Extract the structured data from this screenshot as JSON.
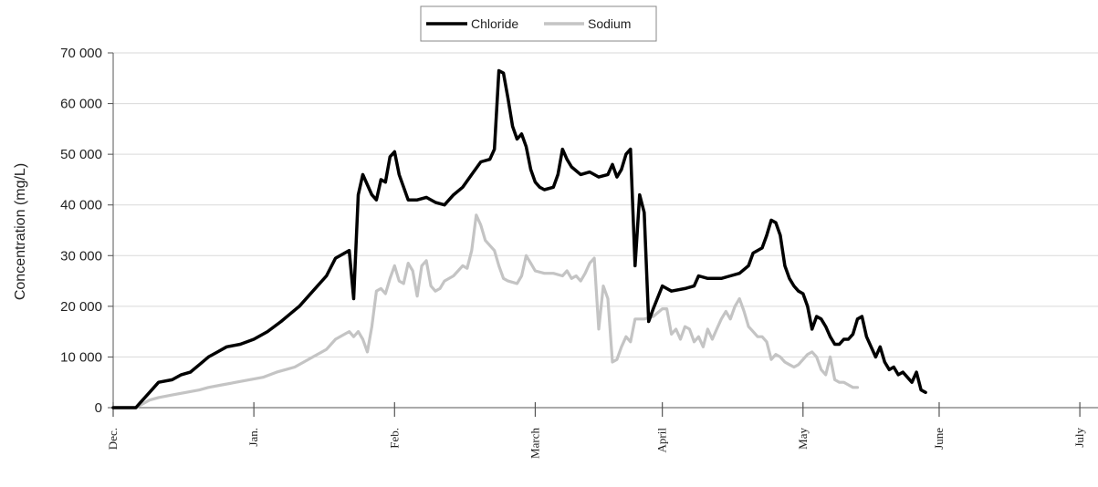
{
  "chart_data": {
    "type": "line",
    "ylabel": "Concentration (mg/L)",
    "ylim": [
      0,
      70000
    ],
    "y_ticks": [
      0,
      10000,
      20000,
      30000,
      40000,
      50000,
      60000,
      70000
    ],
    "y_tick_labels": [
      "0",
      "10 000",
      "20 000",
      "30 000",
      "40 000",
      "50 000",
      "60 000",
      "70 000"
    ],
    "x_months": [
      "Dec.",
      "Jan.",
      "Feb.",
      "March",
      "April",
      "May",
      "June",
      "July"
    ],
    "x_month_start_day": [
      0,
      31,
      62,
      93,
      121,
      152,
      182,
      213
    ],
    "x_end_day": 217,
    "grid_y": true,
    "legend_position": "top-center",
    "series": [
      {
        "name": "Chloride",
        "color": "#000000",
        "points": [
          [
            0,
            0
          ],
          [
            5,
            0
          ],
          [
            6,
            1000
          ],
          [
            8,
            3000
          ],
          [
            10,
            5000
          ],
          [
            13,
            5500
          ],
          [
            15,
            6500
          ],
          [
            17,
            7000
          ],
          [
            19,
            8500
          ],
          [
            21,
            10000
          ],
          [
            23,
            11000
          ],
          [
            25,
            12000
          ],
          [
            28,
            12500
          ],
          [
            31,
            13500
          ],
          [
            34,
            15000
          ],
          [
            37,
            17000
          ],
          [
            39,
            18500
          ],
          [
            41,
            20000
          ],
          [
            44,
            23000
          ],
          [
            47,
            26000
          ],
          [
            49,
            29500
          ],
          [
            52,
            31000
          ],
          [
            53,
            21500
          ],
          [
            54,
            42000
          ],
          [
            55,
            46000
          ],
          [
            57,
            42000
          ],
          [
            58,
            41000
          ],
          [
            59,
            45000
          ],
          [
            60,
            44500
          ],
          [
            61,
            49500
          ],
          [
            62,
            50500
          ],
          [
            63,
            46000
          ],
          [
            65,
            41000
          ],
          [
            67,
            41000
          ],
          [
            69,
            41500
          ],
          [
            71,
            40500
          ],
          [
            73,
            40000
          ],
          [
            75,
            42000
          ],
          [
            77,
            43500
          ],
          [
            79,
            46000
          ],
          [
            81,
            48500
          ],
          [
            83,
            49000
          ],
          [
            84,
            51000
          ],
          [
            85,
            66500
          ],
          [
            86,
            66000
          ],
          [
            87,
            61000
          ],
          [
            88,
            55500
          ],
          [
            89,
            53000
          ],
          [
            90,
            54000
          ],
          [
            91,
            51500
          ],
          [
            92,
            47000
          ],
          [
            93,
            44500
          ],
          [
            94,
            43500
          ],
          [
            95,
            43000
          ],
          [
            97,
            43500
          ],
          [
            98,
            46000
          ],
          [
            99,
            51000
          ],
          [
            100,
            49000
          ],
          [
            101,
            47500
          ],
          [
            103,
            46000
          ],
          [
            105,
            46500
          ],
          [
            107,
            45500
          ],
          [
            109,
            46000
          ],
          [
            110,
            48000
          ],
          [
            111,
            45500
          ],
          [
            112,
            47000
          ],
          [
            113,
            50000
          ],
          [
            114,
            51000
          ],
          [
            115,
            28000
          ],
          [
            116,
            42000
          ],
          [
            117,
            38500
          ],
          [
            118,
            17000
          ],
          [
            119,
            19500
          ],
          [
            121,
            24000
          ],
          [
            123,
            23000
          ],
          [
            126,
            23500
          ],
          [
            128,
            24000
          ],
          [
            129,
            26000
          ],
          [
            131,
            25500
          ],
          [
            134,
            25500
          ],
          [
            136,
            26000
          ],
          [
            138,
            26500
          ],
          [
            140,
            28000
          ],
          [
            141,
            30500
          ],
          [
            143,
            31500
          ],
          [
            144,
            34000
          ],
          [
            145,
            37000
          ],
          [
            146,
            36500
          ],
          [
            147,
            34000
          ],
          [
            148,
            28000
          ],
          [
            149,
            25500
          ],
          [
            150,
            24000
          ],
          [
            151,
            23000
          ],
          [
            152,
            22500
          ],
          [
            153,
            20000
          ],
          [
            154,
            15500
          ],
          [
            155,
            18000
          ],
          [
            156,
            17500
          ],
          [
            157,
            16000
          ],
          [
            158,
            14000
          ],
          [
            159,
            12500
          ],
          [
            160,
            12500
          ],
          [
            161,
            13500
          ],
          [
            162,
            13500
          ],
          [
            163,
            14500
          ],
          [
            164,
            17500
          ],
          [
            165,
            18000
          ],
          [
            166,
            14000
          ],
          [
            167,
            12000
          ],
          [
            168,
            10000
          ],
          [
            169,
            12000
          ],
          [
            170,
            9000
          ],
          [
            171,
            7500
          ],
          [
            172,
            8000
          ],
          [
            173,
            6500
          ],
          [
            174,
            7000
          ],
          [
            175,
            6000
          ],
          [
            176,
            5000
          ],
          [
            177,
            7000
          ],
          [
            178,
            3500
          ],
          [
            179,
            3000
          ]
        ]
      },
      {
        "name": "Sodium",
        "color": "#c4c4c4",
        "points": [
          [
            0,
            0
          ],
          [
            5,
            0
          ],
          [
            6,
            500
          ],
          [
            8,
            1500
          ],
          [
            10,
            2000
          ],
          [
            13,
            2500
          ],
          [
            16,
            3000
          ],
          [
            19,
            3500
          ],
          [
            21,
            4000
          ],
          [
            24,
            4500
          ],
          [
            27,
            5000
          ],
          [
            30,
            5500
          ],
          [
            33,
            6000
          ],
          [
            36,
            7000
          ],
          [
            38,
            7500
          ],
          [
            40,
            8000
          ],
          [
            42,
            9000
          ],
          [
            44,
            10000
          ],
          [
            47,
            11500
          ],
          [
            49,
            13500
          ],
          [
            51,
            14500
          ],
          [
            52,
            15000
          ],
          [
            53,
            14000
          ],
          [
            54,
            15000
          ],
          [
            55,
            13500
          ],
          [
            56,
            11000
          ],
          [
            57,
            16000
          ],
          [
            58,
            23000
          ],
          [
            59,
            23500
          ],
          [
            60,
            22500
          ],
          [
            61,
            25500
          ],
          [
            62,
            28000
          ],
          [
            63,
            25000
          ],
          [
            64,
            24500
          ],
          [
            65,
            28500
          ],
          [
            66,
            27000
          ],
          [
            67,
            22000
          ],
          [
            68,
            28000
          ],
          [
            69,
            29000
          ],
          [
            70,
            24000
          ],
          [
            71,
            23000
          ],
          [
            72,
            23500
          ],
          [
            73,
            25000
          ],
          [
            75,
            26000
          ],
          [
            77,
            28000
          ],
          [
            78,
            27500
          ],
          [
            79,
            31000
          ],
          [
            80,
            38000
          ],
          [
            81,
            36000
          ],
          [
            82,
            33000
          ],
          [
            83,
            32000
          ],
          [
            84,
            31000
          ],
          [
            85,
            28000
          ],
          [
            86,
            25500
          ],
          [
            87,
            25000
          ],
          [
            89,
            24500
          ],
          [
            90,
            26000
          ],
          [
            91,
            30000
          ],
          [
            92,
            28500
          ],
          [
            93,
            27000
          ],
          [
            95,
            26500
          ],
          [
            97,
            26500
          ],
          [
            99,
            26000
          ],
          [
            100,
            27000
          ],
          [
            101,
            25500
          ],
          [
            102,
            26000
          ],
          [
            103,
            25000
          ],
          [
            104,
            26500
          ],
          [
            105,
            28500
          ],
          [
            106,
            29500
          ],
          [
            107,
            15500
          ],
          [
            108,
            24000
          ],
          [
            109,
            21500
          ],
          [
            110,
            9000
          ],
          [
            111,
            9500
          ],
          [
            112,
            12000
          ],
          [
            113,
            14000
          ],
          [
            114,
            13000
          ],
          [
            115,
            17500
          ],
          [
            117,
            17500
          ],
          [
            119,
            18000
          ],
          [
            121,
            19500
          ],
          [
            122,
            19500
          ],
          [
            123,
            14500
          ],
          [
            124,
            15500
          ],
          [
            125,
            13500
          ],
          [
            126,
            16000
          ],
          [
            127,
            15500
          ],
          [
            128,
            13000
          ],
          [
            129,
            14000
          ],
          [
            130,
            12000
          ],
          [
            131,
            15500
          ],
          [
            132,
            13500
          ],
          [
            133,
            15500
          ],
          [
            134,
            17500
          ],
          [
            135,
            19000
          ],
          [
            136,
            17500
          ],
          [
            137,
            20000
          ],
          [
            138,
            21500
          ],
          [
            139,
            19000
          ],
          [
            140,
            16000
          ],
          [
            141,
            15000
          ],
          [
            142,
            14000
          ],
          [
            143,
            14000
          ],
          [
            144,
            13000
          ],
          [
            145,
            9500
          ],
          [
            146,
            10500
          ],
          [
            147,
            10000
          ],
          [
            148,
            9000
          ],
          [
            149,
            8500
          ],
          [
            150,
            8000
          ],
          [
            151,
            8500
          ],
          [
            152,
            9500
          ],
          [
            153,
            10500
          ],
          [
            154,
            11000
          ],
          [
            155,
            10000
          ],
          [
            156,
            7500
          ],
          [
            157,
            6500
          ],
          [
            158,
            10000
          ],
          [
            159,
            5500
          ],
          [
            160,
            5000
          ],
          [
            161,
            5000
          ],
          [
            162,
            4500
          ],
          [
            163,
            4000
          ],
          [
            164,
            4000
          ]
        ]
      }
    ]
  }
}
